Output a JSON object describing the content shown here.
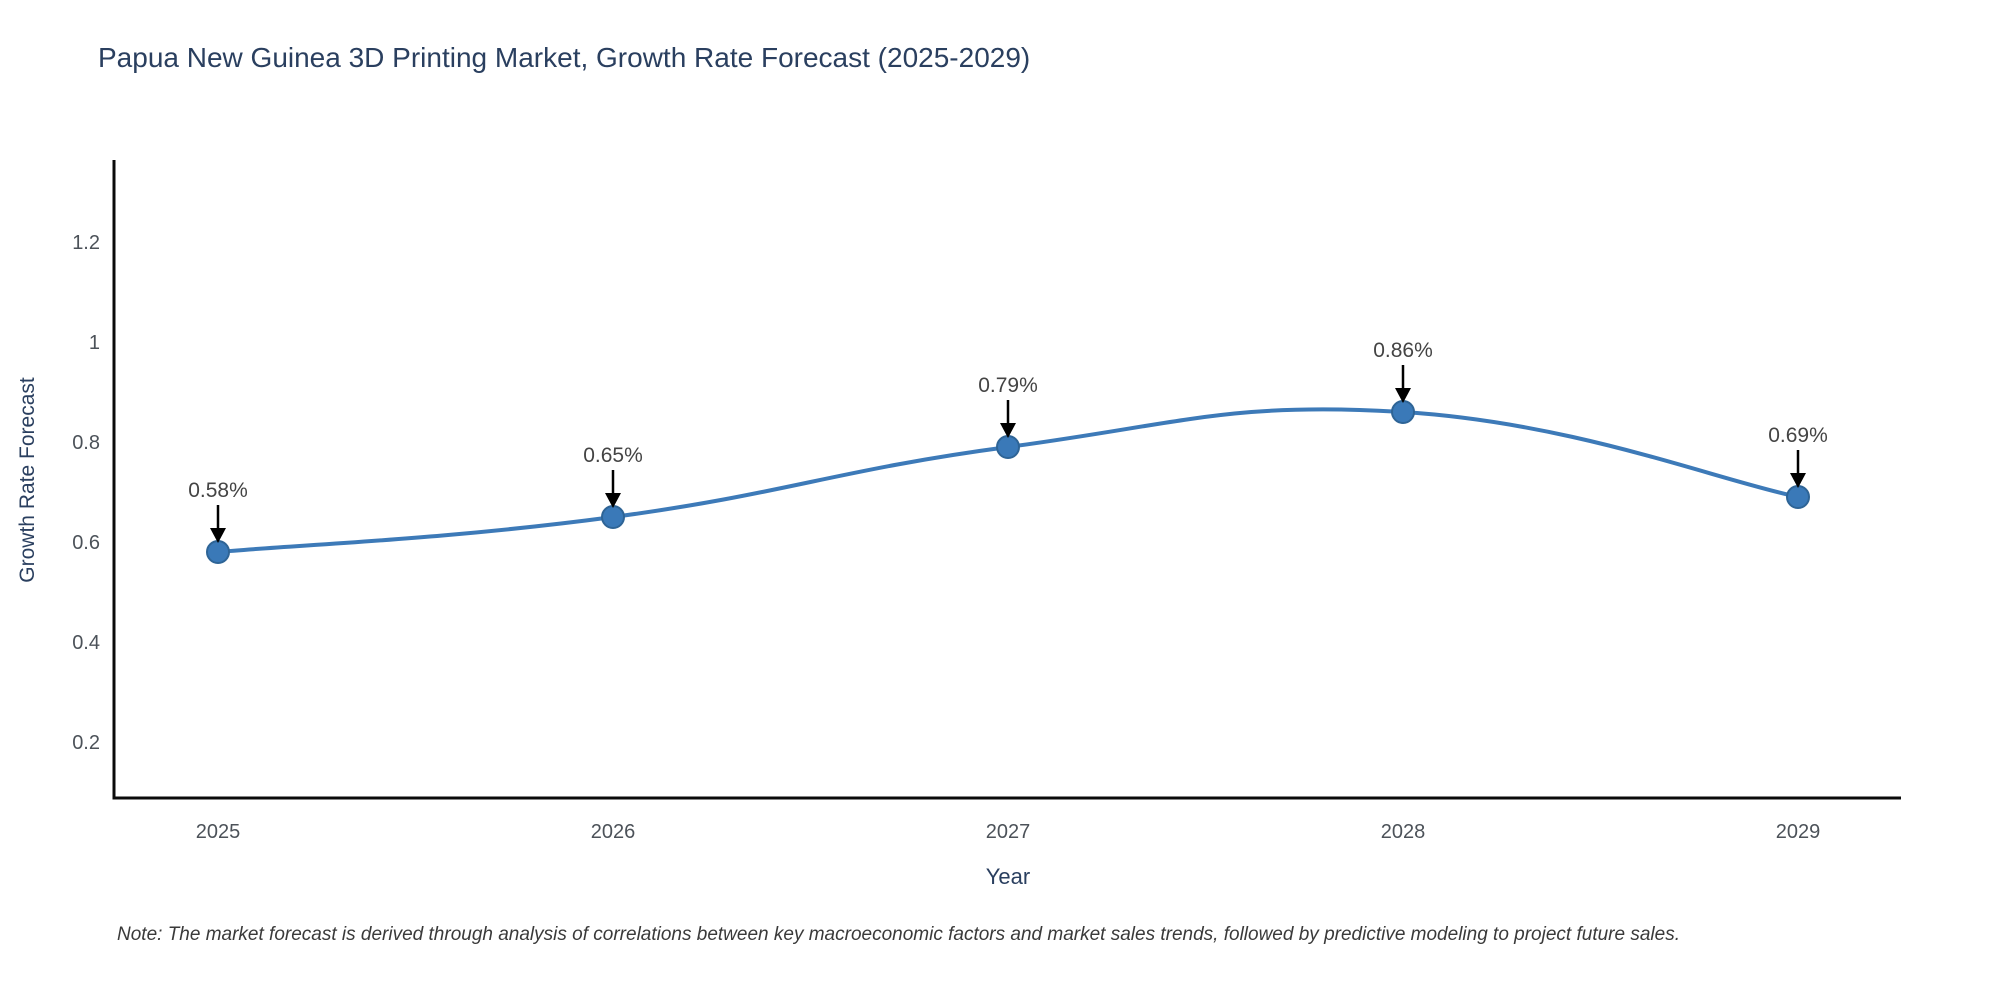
{
  "title": "Papua New Guinea 3D Printing Market, Growth Rate Forecast (2025-2029)",
  "note": "Note: The market forecast is derived through analysis of correlations between key macroeconomic factors and market sales trends, followed by predictive modeling to project future sales.",
  "chart_data": {
    "type": "line",
    "title": "Papua New Guinea 3D Printing Market, Growth Rate Forecast (2025-2029)",
    "xlabel": "Year",
    "ylabel": "Growth Rate Forecast",
    "categories": [
      "2025",
      "2026",
      "2027",
      "2028",
      "2029"
    ],
    "x": [
      2025,
      2026,
      2027,
      2028,
      2029
    ],
    "values": [
      0.58,
      0.65,
      0.79,
      0.86,
      0.69
    ],
    "annotations": [
      "0.58%",
      "0.65%",
      "0.79%",
      "0.86%",
      "0.69%"
    ],
    "ytick_values": [
      0.2,
      0.4,
      0.6,
      0.8,
      1.0,
      1.2
    ],
    "ytick_labels": [
      "0.2",
      "0.4",
      "0.6",
      "0.8",
      "1",
      "1.2"
    ],
    "ylim": [
      0.09,
      1.36
    ],
    "line_shape": "spline",
    "grid": false,
    "legend_position": "none",
    "colors": {
      "line": "#3d7ab8",
      "marker_fill": "#3a79b8",
      "marker_edge": "#2e6496",
      "arrow": "#000000",
      "axis_line": "#0b0b0b",
      "title_text": "#2a3f5f",
      "tick_text": "#4c5259",
      "annotation_text": "#444444",
      "note_text": "#3a3a3a"
    }
  }
}
